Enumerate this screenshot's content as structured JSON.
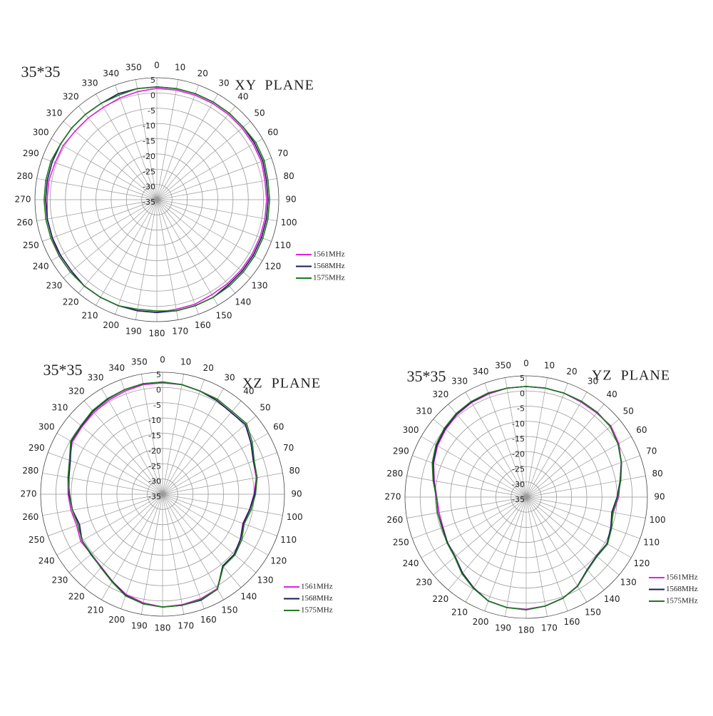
{
  "chart_data": [
    {
      "type": "polar",
      "label": "35*35",
      "title": "XY  PLANE",
      "theta": [
        0,
        10,
        20,
        30,
        40,
        50,
        60,
        70,
        80,
        90,
        100,
        110,
        120,
        130,
        140,
        150,
        160,
        170,
        180,
        190,
        200,
        210,
        220,
        230,
        240,
        250,
        260,
        270,
        280,
        290,
        300,
        310,
        320,
        330,
        340,
        350
      ],
      "rlim": [
        -35,
        5
      ],
      "rticks": [
        -35,
        -30,
        -25,
        -20,
        -15,
        -10,
        -5,
        0,
        5
      ],
      "grid": true,
      "legend": "lower right",
      "series": [
        {
          "name": "1561MHz",
          "color": "#e020e0",
          "values": [
            1.5,
            1.5,
            1.5,
            1.5,
            1.5,
            1.5,
            1.5,
            1.5,
            1,
            1,
            1,
            1,
            1,
            1,
            1,
            1,
            1.5,
            1.5,
            2,
            2,
            2,
            2,
            2,
            2,
            2,
            1.5,
            1.5,
            1,
            1,
            0.5,
            0.5,
            0,
            0,
            0,
            0.5,
            1
          ]
        },
        {
          "name": "1568MHz",
          "color": "#1a1a5a",
          "values": [
            2,
            2,
            2,
            2,
            2,
            2,
            2,
            2,
            1.5,
            1.5,
            1.5,
            1.5,
            1.5,
            1.5,
            1.5,
            2,
            2,
            2,
            2,
            2,
            2,
            2,
            2,
            1.5,
            1.5,
            1.5,
            1.5,
            1.5,
            1.5,
            1.5,
            1.5,
            1.5,
            1.5,
            1.5,
            2,
            2
          ]
        },
        {
          "name": "1575MHz",
          "color": "#1e7a1e",
          "values": [
            2,
            2,
            2,
            2,
            2,
            2,
            2.5,
            2.5,
            2,
            2,
            2,
            2,
            2,
            2,
            2,
            2,
            2,
            2,
            1.5,
            1.5,
            2,
            2,
            2,
            2,
            2,
            2,
            2,
            2,
            2,
            2,
            1.5,
            1.5,
            1.5,
            1.5,
            1.5,
            2
          ]
        }
      ]
    },
    {
      "type": "polar",
      "label": "35*35",
      "title": "XZ  PLANE",
      "theta": [
        0,
        10,
        20,
        30,
        40,
        50,
        60,
        70,
        80,
        90,
        100,
        110,
        120,
        130,
        140,
        150,
        160,
        170,
        180,
        190,
        200,
        210,
        220,
        230,
        240,
        250,
        260,
        270,
        280,
        290,
        300,
        310,
        320,
        330,
        340,
        350
      ],
      "rlim": [
        -35,
        5
      ],
      "rticks": [
        -35,
        -30,
        -25,
        -20,
        -15,
        -10,
        -5,
        0,
        5
      ],
      "grid": true,
      "legend": "lower right",
      "series": [
        {
          "name": "1561MHz",
          "color": "#e020e0",
          "values": [
            1.5,
            1.5,
            1,
            0.5,
            0,
            0.5,
            -1.5,
            -3.3,
            -3.8,
            -5,
            -6,
            -7,
            -5.5,
            -4.3,
            -4,
            0.8,
            1.5,
            1.8,
            2,
            1.2,
            0,
            -2,
            -3.8,
            -4.5,
            -4,
            -5,
            -4.5,
            -4,
            -3.5,
            -2.5,
            -0.8,
            -0.5,
            0,
            0.5,
            1,
            1.5
          ]
        },
        {
          "name": "1568MHz",
          "color": "#1a1a5a",
          "values": [
            1.8,
            1.5,
            1,
            0.5,
            0,
            0.5,
            -1.5,
            -3.3,
            -3.5,
            -4.8,
            -6,
            -6.8,
            -5.5,
            -4.3,
            -4.3,
            1,
            2,
            2,
            2,
            1.5,
            0.3,
            -2,
            -3.6,
            -4.3,
            -4.5,
            -6,
            -5,
            -4.3,
            -3.8,
            -2.8,
            -0.4,
            -0.2,
            0.5,
            1,
            1.5,
            1.8
          ]
        },
        {
          "name": "1575MHz",
          "color": "#1e7a1e",
          "values": [
            1.8,
            1.5,
            1,
            1,
            0.5,
            1,
            -1,
            -3,
            -3.5,
            -4.5,
            -5.5,
            -6.5,
            -5,
            -4,
            -4,
            1,
            1.8,
            2,
            2,
            1.5,
            0.5,
            -1.8,
            -3.5,
            -4.5,
            -4.5,
            -5.5,
            -5,
            -4.5,
            -3.5,
            -2.5,
            -0.2,
            0,
            0.8,
            1.2,
            1.5,
            1.8
          ]
        }
      ]
    },
    {
      "type": "polar",
      "label": "35*35",
      "title": "YZ  PLANE",
      "theta": [
        0,
        10,
        20,
        30,
        40,
        50,
        60,
        70,
        80,
        90,
        100,
        110,
        120,
        130,
        140,
        150,
        160,
        170,
        180,
        190,
        200,
        210,
        220,
        230,
        240,
        250,
        260,
        270,
        280,
        290,
        300,
        310,
        320,
        330,
        340,
        350
      ],
      "rlim": [
        -35,
        5
      ],
      "rticks": [
        -35,
        -30,
        -25,
        -20,
        -15,
        -10,
        -5,
        0,
        5
      ],
      "grid": true,
      "legend": "lower right",
      "series": [
        {
          "name": "1561MHz",
          "color": "#e020e0",
          "values": [
            1.5,
            1.5,
            1.5,
            1.2,
            1.2,
            1.5,
            0.3,
            -1.6,
            -3.5,
            -4.5,
            -5.8,
            -5.3,
            -4.2,
            -4.7,
            -3.7,
            -1.1,
            0.5,
            1.5,
            2,
            2,
            1.5,
            -0.2,
            -2.3,
            -4.4,
            -5,
            -5.8,
            -5.8,
            -5.5,
            -4.2,
            -2.5,
            -1.2,
            -0.3,
            0.5,
            1,
            1.2,
            1.5
          ]
        },
        {
          "name": "1568MHz",
          "color": "#1a1a5a",
          "values": [
            1.5,
            1.5,
            1.5,
            1.5,
            1.5,
            1.2,
            0,
            -1.6,
            -3.5,
            -5,
            -6.3,
            -5.3,
            -4.2,
            -4.7,
            -3.7,
            -1.1,
            0.5,
            1.5,
            2.2,
            2,
            1.5,
            -0.4,
            -2.3,
            -4.4,
            -5,
            -5.6,
            -5.3,
            -5.3,
            -4,
            -2.3,
            -0.9,
            0,
            0.8,
            1.2,
            1.5,
            1.5
          ]
        },
        {
          "name": "1575MHz",
          "color": "#1e7a1e",
          "values": [
            1.5,
            1.5,
            1.5,
            1.5,
            1.5,
            1.2,
            0,
            -1.5,
            -3.3,
            -4.8,
            -6,
            -5,
            -4,
            -4.5,
            -3.5,
            -1,
            0.5,
            1.5,
            2.2,
            2,
            1.5,
            -0.2,
            -2,
            -4.2,
            -4.8,
            -5.4,
            -5.3,
            -5.3,
            -3.8,
            -2,
            -0.6,
            0.3,
            1,
            1.4,
            1.6,
            1.5
          ]
        }
      ]
    }
  ]
}
